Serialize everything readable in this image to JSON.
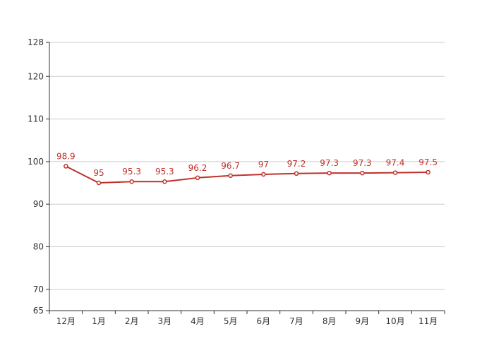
{
  "chart_data": {
    "type": "line",
    "categories": [
      "12月",
      "1月",
      "2月",
      "3月",
      "4月",
      "5月",
      "6月",
      "7月",
      "8月",
      "9月",
      "10月",
      "11月"
    ],
    "series": [
      {
        "values": [
          98.9,
          95,
          95.3,
          95.3,
          96.2,
          96.7,
          97,
          97.2,
          97.3,
          97.3,
          97.4,
          97.5
        ],
        "labels": [
          "98.9",
          "95",
          "95.3",
          "95.3",
          "96.2",
          "96.7",
          "97",
          "97.2",
          "97.3",
          "97.3",
          "97.4",
          "97.5"
        ],
        "color": "#c0302b"
      }
    ],
    "ylim": [
      65,
      128
    ],
    "yticks": [
      65,
      70,
      80,
      90,
      100,
      110,
      120,
      128
    ],
    "ytick_labels": [
      "65",
      "70",
      "80",
      "90",
      "100",
      "110",
      "120",
      "128"
    ],
    "grid": true,
    "legend": "none"
  }
}
